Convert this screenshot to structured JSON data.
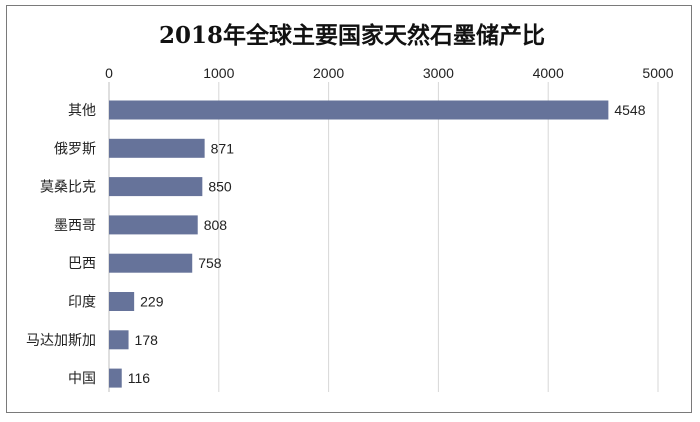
{
  "chart_data": {
    "type": "bar",
    "orientation": "horizontal",
    "title": "2018年全球主要国家天然石墨储产比",
    "categories": [
      "其他",
      "俄罗斯",
      "莫桑比克",
      "墨西哥",
      "巴西",
      "印度",
      "马达加斯加",
      "中国"
    ],
    "values": [
      4548,
      871,
      850,
      808,
      758,
      229,
      178,
      116
    ],
    "xlim": [
      0,
      5000
    ],
    "x_ticks": [
      0,
      1000,
      2000,
      3000,
      4000,
      5000
    ],
    "x_axis_position": "top",
    "grid": true,
    "legend": "none",
    "bar_color": "#66739a"
  }
}
